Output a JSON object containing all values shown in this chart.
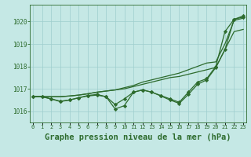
{
  "background_color": "#c5e8e5",
  "grid_color": "#9ecece",
  "line_color": "#2d6b2d",
  "title": "Graphe pression niveau de la mer (hPa)",
  "title_fontsize": 7.5,
  "ylim": [
    1015.5,
    1020.75
  ],
  "yticks": [
    1016,
    1017,
    1018,
    1019,
    1020
  ],
  "xlim": [
    -0.3,
    23.3
  ],
  "series": {
    "line_smooth1": [
      1016.65,
      1016.65,
      1016.65,
      1016.65,
      1016.68,
      1016.72,
      1016.78,
      1016.85,
      1016.9,
      1016.95,
      1017.0,
      1017.1,
      1017.2,
      1017.3,
      1017.4,
      1017.5,
      1017.55,
      1017.65,
      1017.75,
      1017.85,
      1017.95,
      1018.75,
      1019.55,
      1019.65
    ],
    "line_smooth2": [
      1016.65,
      1016.65,
      1016.65,
      1016.65,
      1016.68,
      1016.72,
      1016.78,
      1016.85,
      1016.9,
      1016.95,
      1017.05,
      1017.15,
      1017.3,
      1017.4,
      1017.5,
      1017.6,
      1017.7,
      1017.85,
      1018.0,
      1018.15,
      1018.2,
      1019.0,
      1020.05,
      1020.15
    ],
    "line_marker1": [
      1016.65,
      1016.65,
      1016.55,
      1016.45,
      1016.5,
      1016.6,
      1016.7,
      1016.75,
      1016.65,
      1016.1,
      1016.25,
      1016.85,
      1016.95,
      1016.85,
      1016.7,
      1016.55,
      1016.4,
      1016.85,
      1017.3,
      1017.45,
      1018.0,
      1019.55,
      1020.1,
      1020.25
    ],
    "line_marker2": [
      1016.65,
      1016.65,
      1016.55,
      1016.43,
      1016.5,
      1016.6,
      1016.68,
      1016.72,
      1016.65,
      1016.3,
      1016.55,
      1016.85,
      1016.95,
      1016.85,
      1016.68,
      1016.5,
      1016.35,
      1016.75,
      1017.2,
      1017.4,
      1017.95,
      1018.75,
      1020.1,
      1020.2
    ]
  }
}
